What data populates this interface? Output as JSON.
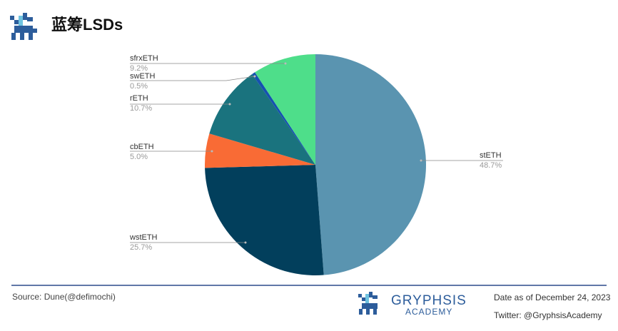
{
  "chart_data": {
    "type": "pie",
    "title": "蓝筹LSDs",
    "categories": [
      "stETH",
      "wstETH",
      "cbETH",
      "rETH",
      "swETH",
      "sfrxETH"
    ],
    "values": [
      48.7,
      25.7,
      5.0,
      10.7,
      0.5,
      9.2
    ],
    "value_labels": [
      "48.7%",
      "25.7%",
      "5.0%",
      "10.7%",
      "0.5%",
      "9.2%"
    ],
    "colors": [
      "#5a94b0",
      "#023f5c",
      "#f96b35",
      "#1a737e",
      "#1552b0",
      "#4ede8a"
    ],
    "source": "Source: Dune(@defimochi)",
    "brand": "GRYPHSIS",
    "brand_sub": "ACADEMY",
    "date_note": "Date as of December 24, 2023",
    "twitter": "Twitter: @GryphsisAcademy"
  }
}
